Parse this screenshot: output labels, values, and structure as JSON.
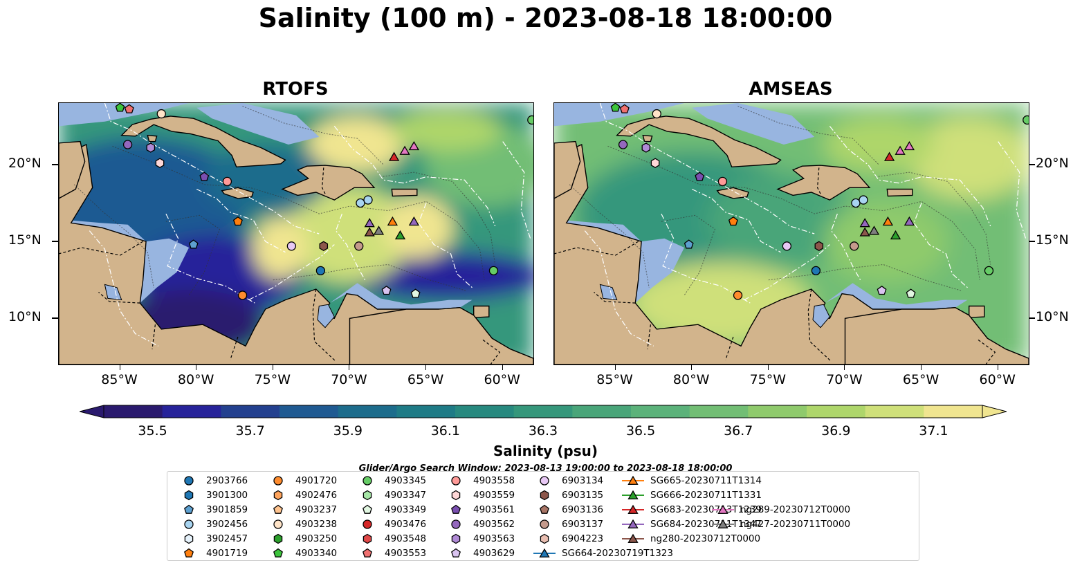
{
  "title": "Salinity (100 m) - 2023-08-18 18:00:00",
  "panels": [
    {
      "title": "RTOFS"
    },
    {
      "title": "AMSEAS"
    }
  ],
  "axes": {
    "lon_ticks": [
      "85°W",
      "80°W",
      "75°W",
      "70°W",
      "65°W",
      "60°W"
    ],
    "lat_ticks": [
      "20°N",
      "15°N",
      "10°N"
    ],
    "lon_range": [
      -89,
      -58
    ],
    "lat_range": [
      7,
      24
    ]
  },
  "colorbar": {
    "label": "Salinity (psu)",
    "ticks": [
      "35.5",
      "35.7",
      "35.9",
      "36.1",
      "36.3",
      "36.5",
      "36.7",
      "36.9",
      "37.1"
    ],
    "min": 35.4,
    "max": 37.2,
    "colors": [
      "#2a1a6e",
      "#27239a",
      "#23408f",
      "#1f5a92",
      "#1c6c8c",
      "#1e7b86",
      "#27897f",
      "#35977b",
      "#49a579",
      "#5bb27a",
      "#72be74",
      "#8fca6c",
      "#aed66b",
      "#cfe07a",
      "#f0e590"
    ]
  },
  "search_window": "Glider/Argo Search Window: 2023-08-13 19:00:00 to 2023-08-18 18:00:00",
  "colors": {
    "land": "#d2b48c",
    "shelf": "#98b5e0",
    "coast": "#000000"
  },
  "legend": [
    {
      "label": "2903766",
      "marker": "circle",
      "color": "#1f77b4"
    },
    {
      "label": "3901300",
      "marker": "hexagon",
      "color": "#1f77b4"
    },
    {
      "label": "3901859",
      "marker": "pentagon",
      "color": "#5da0d0"
    },
    {
      "label": "3902456",
      "marker": "circle",
      "color": "#a8d4f0"
    },
    {
      "label": "3902457",
      "marker": "hexagon",
      "color": "#e6f2fb"
    },
    {
      "label": "4901719",
      "marker": "pentagon",
      "color": "#ff7f0e"
    },
    {
      "label": "4901720",
      "marker": "circle",
      "color": "#ff8c2e"
    },
    {
      "label": "4902476",
      "marker": "hexagon",
      "color": "#ffa45c"
    },
    {
      "label": "4903237",
      "marker": "pentagon",
      "color": "#ffc48f"
    },
    {
      "label": "4903238",
      "marker": "circle",
      "color": "#ffe4c8"
    },
    {
      "label": "4903250",
      "marker": "hexagon",
      "color": "#2ca02c"
    },
    {
      "label": "4903340",
      "marker": "pentagon",
      "color": "#3cc43c"
    },
    {
      "label": "4903345",
      "marker": "circle",
      "color": "#66cc66"
    },
    {
      "label": "4903347",
      "marker": "hexagon",
      "color": "#a6e6a6"
    },
    {
      "label": "4903349",
      "marker": "pentagon",
      "color": "#e2f7e2"
    },
    {
      "label": "4903476",
      "marker": "circle",
      "color": "#d62728"
    },
    {
      "label": "4903548",
      "marker": "hexagon",
      "color": "#e04848"
    },
    {
      "label": "4903553",
      "marker": "pentagon",
      "color": "#f07070"
    },
    {
      "label": "4903558",
      "marker": "circle",
      "color": "#ff9a98"
    },
    {
      "label": "4903559",
      "marker": "hexagon",
      "color": "#ffd8d8"
    },
    {
      "label": "4903561",
      "marker": "pentagon",
      "color": "#7a4fb0"
    },
    {
      "label": "4903562",
      "marker": "circle",
      "color": "#9467bd"
    },
    {
      "label": "4903563",
      "marker": "hexagon",
      "color": "#b08ad6"
    },
    {
      "label": "4903629",
      "marker": "pentagon",
      "color": "#d9c3f0"
    },
    {
      "label": "6903134",
      "marker": "circle",
      "color": "#e8c8f5"
    },
    {
      "label": "6903135",
      "marker": "hexagon",
      "color": "#8c564b"
    },
    {
      "label": "6903136",
      "marker": "pentagon",
      "color": "#a87566"
    },
    {
      "label": "6903137",
      "marker": "circle",
      "color": "#c49a8c"
    },
    {
      "label": "6904223",
      "marker": "hexagon",
      "color": "#e8bdb0"
    },
    {
      "label": "SG664-20230719T1323",
      "marker": "triangle-line",
      "color": "#1f77b4"
    },
    {
      "label": "SG665-20230711T1314",
      "marker": "triangle-line",
      "color": "#ff7f0e"
    },
    {
      "label": "SG666-20230711T1331",
      "marker": "triangle-line",
      "color": "#2ca02c"
    },
    {
      "label": "SG683-20230713T1239",
      "marker": "triangle-line",
      "color": "#d62728"
    },
    {
      "label": "SG684-20230711T1347",
      "marker": "triangle-line",
      "color": "#9467bd"
    },
    {
      "label": "ng280-20230712T0000",
      "marker": "triangle-line",
      "color": "#8c564b"
    },
    {
      "label": "ng289-20230712T0000",
      "marker": "triangle-line",
      "color": "#e377c2"
    },
    {
      "label": "ng427-20230711T0000",
      "marker": "triangle-line",
      "color": "#7f7f7f"
    }
  ],
  "observations": [
    {
      "id": "4901719",
      "lon": -77.3,
      "lat": 16.3
    },
    {
      "id": "4901720",
      "lon": -77.0,
      "lat": 11.5
    },
    {
      "id": "3902456",
      "lon": -69.3,
      "lat": 17.5
    },
    {
      "id": "3902456",
      "lon": -68.8,
      "lat": 17.7
    },
    {
      "id": "3901859",
      "lon": -80.2,
      "lat": 14.8
    },
    {
      "id": "2903766",
      "lon": -71.9,
      "lat": 13.1
    },
    {
      "id": "6903134",
      "lon": -73.8,
      "lat": 14.7
    },
    {
      "id": "6903135",
      "lon": -71.7,
      "lat": 14.7
    },
    {
      "id": "6903137",
      "lon": -69.4,
      "lat": 14.7
    },
    {
      "id": "4903345",
      "lon": -60.6,
      "lat": 13.1
    },
    {
      "id": "4903349",
      "lon": -65.7,
      "lat": 11.6
    },
    {
      "id": "4903629",
      "lon": -67.6,
      "lat": 11.8
    },
    {
      "id": "4903558",
      "lon": -78.0,
      "lat": 18.9
    },
    {
      "id": "4903561",
      "lon": -79.5,
      "lat": 19.2
    },
    {
      "id": "4903562",
      "lon": -84.5,
      "lat": 21.3
    },
    {
      "id": "4903563",
      "lon": -83.0,
      "lat": 21.1
    },
    {
      "id": "4903559",
      "lon": -82.4,
      "lat": 20.1
    },
    {
      "id": "4903553",
      "lon": -84.4,
      "lat": 23.6
    },
    {
      "id": "4903238",
      "lon": -82.3,
      "lat": 23.3
    },
    {
      "id": "4903340",
      "lon": -85.0,
      "lat": 23.7
    },
    {
      "id": "4903345",
      "lon": -58.1,
      "lat": 22.9
    },
    {
      "id": "SG683-20230713T1239",
      "lon": -67.1,
      "lat": 20.5
    },
    {
      "id": "ng289-20230712T0000",
      "lon": -66.4,
      "lat": 20.9
    },
    {
      "id": "ng289-20230712T0000",
      "lon": -65.8,
      "lat": 21.2
    },
    {
      "id": "SG684-20230711T1347",
      "lon": -68.7,
      "lat": 16.2
    },
    {
      "id": "SG665-20230711T1314",
      "lon": -67.2,
      "lat": 16.3
    },
    {
      "id": "ng280-20230712T0000",
      "lon": -68.7,
      "lat": 15.6
    },
    {
      "id": "ng427-20230711T0000",
      "lon": -68.1,
      "lat": 15.7
    },
    {
      "id": "SG666-20230711T1331",
      "lon": -66.7,
      "lat": 15.4
    },
    {
      "id": "SG684-20230711T1347",
      "lon": -65.8,
      "lat": 16.3
    }
  ]
}
